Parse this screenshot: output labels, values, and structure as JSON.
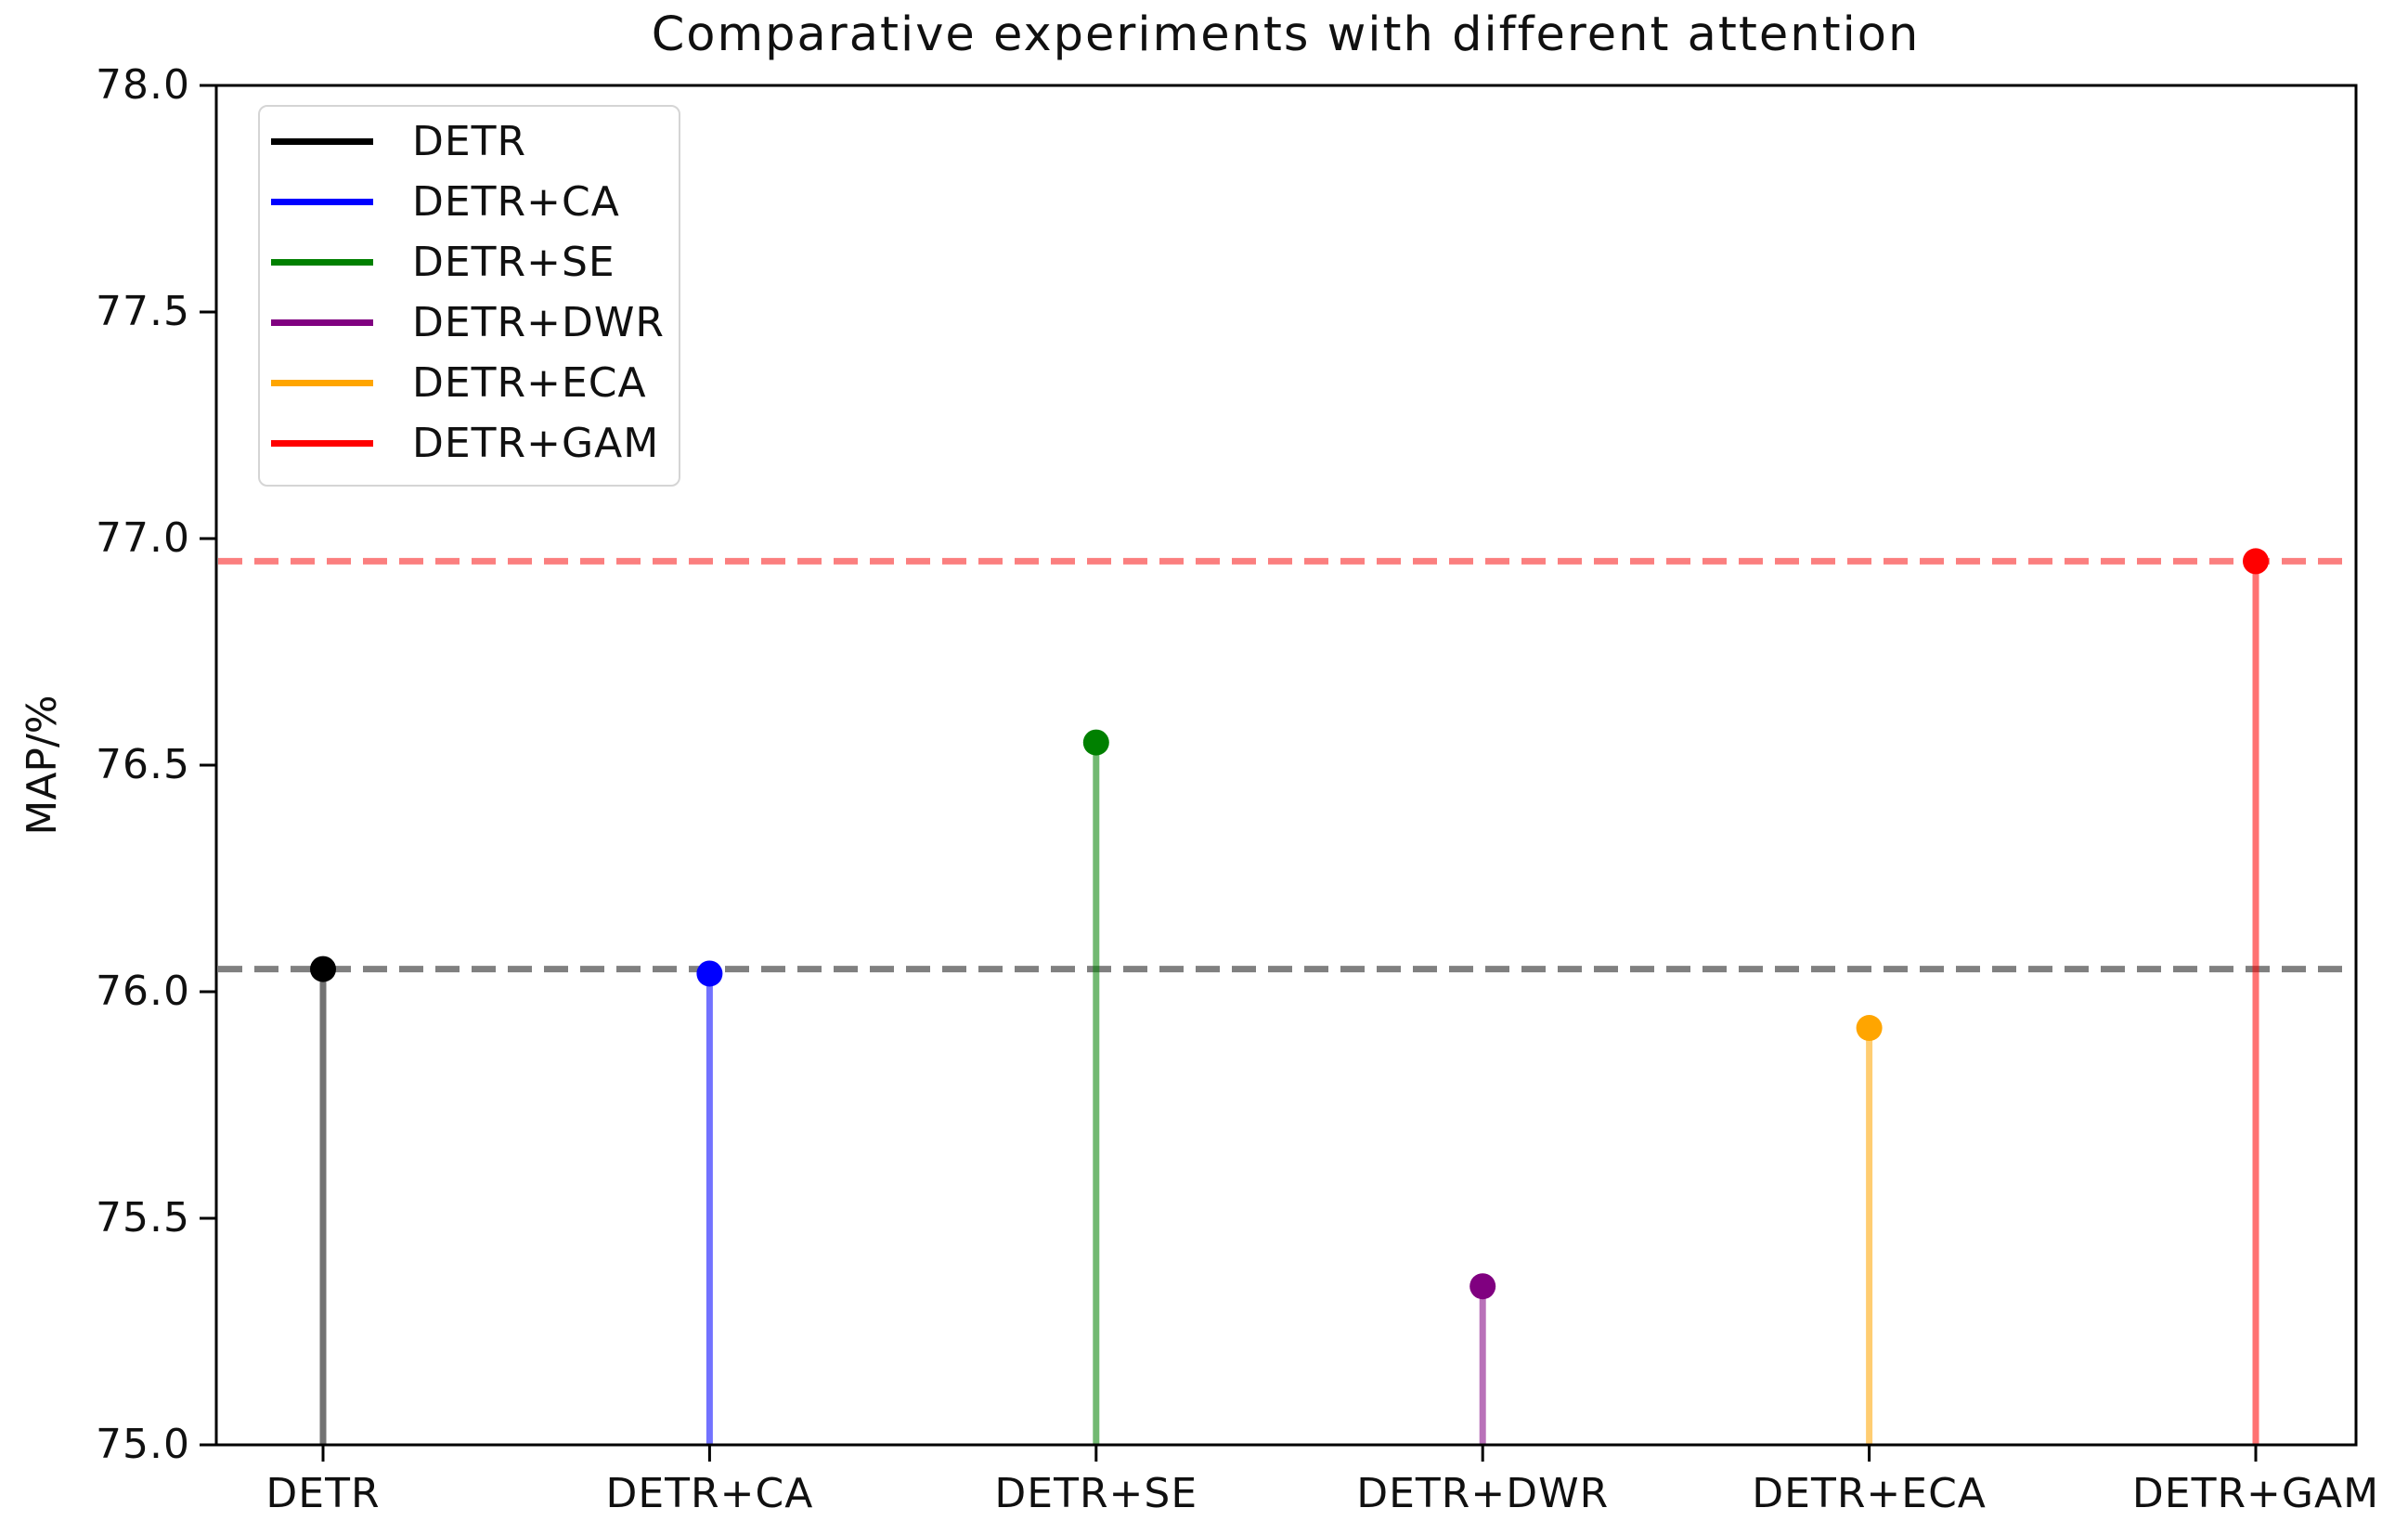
{
  "chart_data": {
    "type": "stem",
    "title": "Comparative experiments with different attention",
    "xlabel": "",
    "ylabel": "MAP/%",
    "ylim": [
      75.0,
      78.0
    ],
    "yticks": [
      75.0,
      75.5,
      76.0,
      76.5,
      77.0,
      77.5,
      78.0
    ],
    "categories": [
      "DETR",
      "DETR+CA",
      "DETR+SE",
      "DETR+DWR",
      "DETR+ECA",
      "DETR+GAM"
    ],
    "series": [
      {
        "name": "DETR",
        "value": 76.05,
        "color": "#000000"
      },
      {
        "name": "DETR+CA",
        "value": 76.04,
        "color": "#0000ff"
      },
      {
        "name": "DETR+SE",
        "value": 76.55,
        "color": "#008000"
      },
      {
        "name": "DETR+DWR",
        "value": 75.35,
        "color": "#800080"
      },
      {
        "name": "DETR+ECA",
        "value": 75.92,
        "color": "#ffa500"
      },
      {
        "name": "DETR+GAM",
        "value": 76.95,
        "color": "#ff0000"
      }
    ],
    "reference_lines": [
      {
        "value": 76.05,
        "color": "#808080",
        "style": "dashed"
      },
      {
        "value": 76.95,
        "color": "#fb7f7f",
        "style": "dashed"
      }
    ],
    "legend": {
      "position": "upper left",
      "entries": [
        "DETR",
        "DETR+CA",
        "DETR+SE",
        "DETR+DWR",
        "DETR+ECA",
        "DETR+GAM"
      ]
    },
    "grid": false,
    "axis_color": "#000000"
  }
}
